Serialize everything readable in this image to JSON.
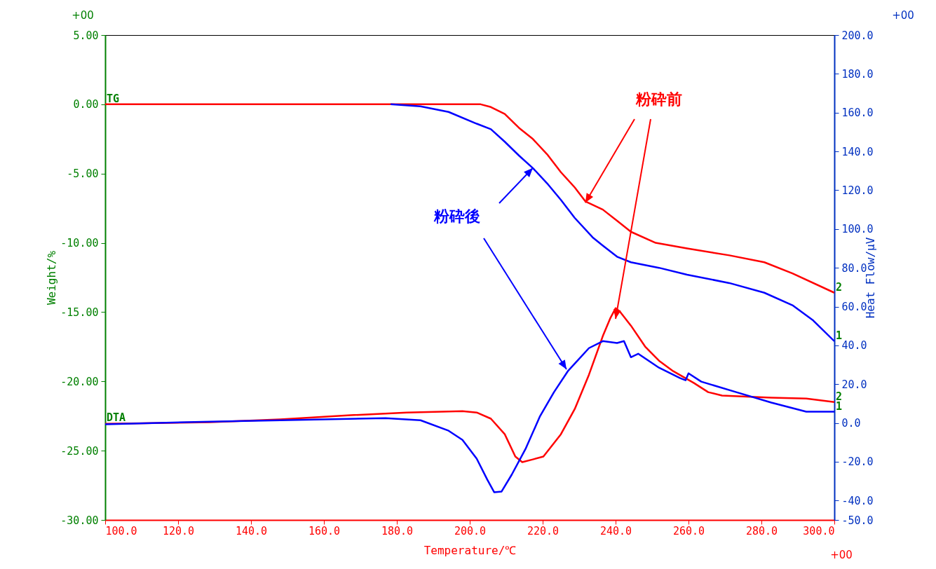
{
  "chart_data": {
    "type": "line",
    "xlabel": "Temperature/℃",
    "ylabel": "Weight/%",
    "y2label": "Heat Flow/μV",
    "xlim": [
      100,
      300
    ],
    "xticks": [
      {
        "value": 100,
        "label": "100.0"
      },
      {
        "value": 120,
        "label": "120.0"
      },
      {
        "value": 140,
        "label": "140.0"
      },
      {
        "value": 160,
        "label": "160.0"
      },
      {
        "value": 180,
        "label": "180.0"
      },
      {
        "value": 200,
        "label": "200.0"
      },
      {
        "value": 220,
        "label": "220.0"
      },
      {
        "value": 240,
        "label": "240.0"
      },
      {
        "value": 260,
        "label": "260.0"
      },
      {
        "value": 280,
        "label": "280.0"
      },
      {
        "value": 300,
        "label": "300.0"
      }
    ],
    "ylim": [
      -30,
      5
    ],
    "yticks": [
      {
        "value": 5,
        "label": "5.00"
      },
      {
        "value": 0,
        "label": "0.00"
      },
      {
        "value": -5,
        "label": "-5.00"
      },
      {
        "value": -10,
        "label": "-10.00"
      },
      {
        "value": -15,
        "label": "-15.00"
      },
      {
        "value": -20,
        "label": "-20.00"
      },
      {
        "value": -25,
        "label": "-25.00"
      },
      {
        "value": -30,
        "label": "-30.00"
      }
    ],
    "y2lim": [
      -50,
      200
    ],
    "y2ticks": [
      {
        "value": 200,
        "label": "200.0"
      },
      {
        "value": 180,
        "label": "180.0"
      },
      {
        "value": 160,
        "label": "160.0"
      },
      {
        "value": 140,
        "label": "140.0"
      },
      {
        "value": 120,
        "label": "120.0"
      },
      {
        "value": 100,
        "label": "100.0"
      },
      {
        "value": 80,
        "label": "80.0"
      },
      {
        "value": 60,
        "label": "60.0"
      },
      {
        "value": 40,
        "label": "40.0"
      },
      {
        "value": 20,
        "label": "20.0"
      },
      {
        "value": 0,
        "label": "0.0"
      },
      {
        "value": -20,
        "label": "-20.0"
      },
      {
        "value": -40,
        "label": "-40.0"
      },
      {
        "value": -50,
        "label": "-50.0"
      }
    ],
    "line_style": "solid",
    "series": [
      {
        "color": "#ff0000",
        "x": [
          100,
          150,
          203,
          205.8,
          209.6,
          213.5,
          217.3,
          221.2,
          225,
          228.8,
          231.7,
          236.5,
          240.4,
          244.2,
          251,
          259.6,
          271.2,
          280.8,
          288.5,
          300
        ],
        "values": [
          0,
          0,
          0,
          -0.2,
          -0.7,
          -1.7,
          -2.5,
          -3.6,
          -4.9,
          -6.0,
          -7.0,
          -7.6,
          -8.4,
          -9.2,
          -10.0,
          -10.4,
          -10.9,
          -11.4,
          -12.2,
          -13.6
        ]
      },
      {
        "color": "#0000ff",
        "x": [
          178.3,
          186.5,
          194.2,
          201.9,
          205.8,
          209.6,
          213.5,
          217.3,
          221.2,
          225,
          228.8,
          233.7,
          236.5,
          240.4,
          244.2,
          251.9,
          259.6,
          271.2,
          280.8,
          288.5,
          294.2,
          300
        ],
        "values": [
          0,
          -0.15,
          -0.55,
          -1.4,
          -1.8,
          -2.7,
          -3.7,
          -4.6,
          -5.7,
          -6.9,
          -8.2,
          -9.6,
          -10.2,
          -11.0,
          -11.4,
          -11.8,
          -12.3,
          -12.9,
          -13.6,
          -14.5,
          -15.6,
          -17.1
        ]
      },
      {
        "color": "#ff0000",
        "axis": "y2",
        "x": [
          100,
          128.8,
          148,
          167.3,
          182.7,
          198,
          201.9,
          205.8,
          209.6,
          212.5,
          214.4,
          217.3,
          220.2,
          225,
          228.8,
          232.7,
          236.5,
          238.5,
          240,
          241.2,
          244.2,
          248.1,
          251.9,
          255.8,
          261.5,
          265.4,
          269.2,
          282.7,
          292.3,
          300
        ],
        "values": [
          -0.4,
          0.4,
          1.8,
          4,
          5.4,
          6.1,
          5.4,
          2.2,
          -5.8,
          -17.3,
          -20.2,
          -18.8,
          -17.3,
          -5.8,
          7.2,
          24.9,
          44.8,
          53.8,
          59.2,
          57.4,
          50.2,
          39.4,
          32.1,
          26.7,
          20.6,
          15.9,
          14.1,
          13.0,
          12.6,
          10.8
        ]
      },
      {
        "color": "#0000ff",
        "axis": "y2",
        "x": [
          100,
          128.8,
          148,
          176.9,
          186.5,
          194.2,
          198,
          201.9,
          204.8,
          206.7,
          208.7,
          211.5,
          215.4,
          219.2,
          223.1,
          226.9,
          232.7,
          236.5,
          240.4,
          242.3,
          244.2,
          246.2,
          251.9,
          257.7,
          259.2,
          260,
          263.5,
          273.1,
          282.7,
          292.3,
          300
        ],
        "values": [
          -0.7,
          0.7,
          1.4,
          2.5,
          1.4,
          -4,
          -8.7,
          -18.4,
          -29.2,
          -35.7,
          -35.4,
          -26.7,
          -13,
          3.2,
          15.9,
          26.7,
          38.6,
          42.2,
          41.2,
          42.2,
          33.9,
          35.7,
          28.5,
          23.1,
          22.0,
          25.6,
          21.3,
          15.9,
          10.5,
          5.8,
          5.8
        ]
      }
    ],
    "annotations": [
      {
        "text": "粉砕前",
        "x": 231.7,
        "y": -7.1
      },
      {
        "text": "粉砕後",
        "x": 217.3,
        "y": -4.6
      },
      "+00",
      "+00",
      "+00",
      {
        "text": "TG",
        "x": 100,
        "y": 0
      },
      {
        "text": "DTA",
        "x": 100,
        "y": -23
      },
      {
        "text": "2",
        "x": 300,
        "y": -13.6
      },
      {
        "text": "1",
        "x": 300,
        "y": -17.1
      },
      {
        "text": "2",
        "x": 300,
        "y": -21.5
      },
      {
        "text": "1",
        "x": 300,
        "y": -22.2
      }
    ]
  }
}
